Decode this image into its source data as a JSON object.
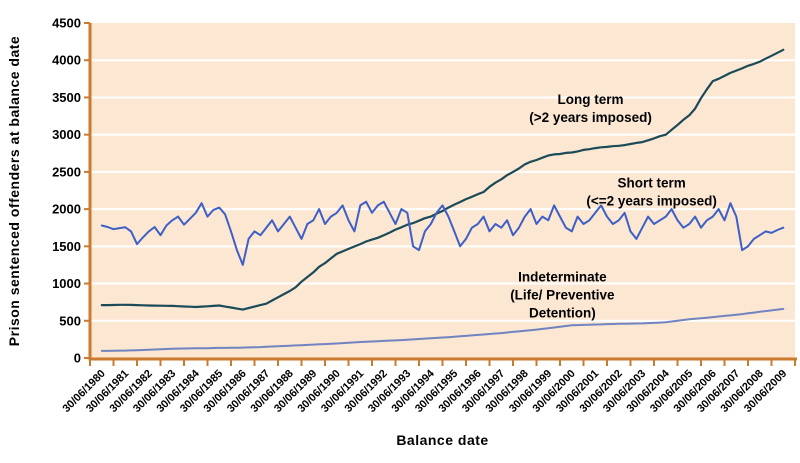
{
  "chart_data": {
    "type": "line",
    "title": "",
    "xlabel": "Balance date",
    "ylabel": "Prison sentenced offenders at balance date",
    "ylim": [
      0,
      4500
    ],
    "ytick_step": 500,
    "grid": "horizontal-white",
    "legend_position": "inline-annotations",
    "plot_background": "#FCE7D3",
    "grid_color": "#FFFFFF",
    "axis_color": "#CC7A2E",
    "text_color": "#000000",
    "x_categories": [
      "30/06/1980",
      "30/06/1981",
      "30/06/1982",
      "30/06/1983",
      "30/06/1984",
      "30/06/1985",
      "30/06/1986",
      "30/06/1987",
      "30/06/1988",
      "30/06/1989",
      "30/06/1990",
      "30/06/1991",
      "30/06/1992",
      "30/06/1993",
      "30/06/1994",
      "30/06/1995",
      "30/06/1996",
      "30/06/1997",
      "30/06/1998",
      "30/06/1999",
      "30/06/2000",
      "30/06/2001",
      "30/06/2002",
      "30/06/2003",
      "30/06/2004",
      "30/06/2005",
      "30/06/2006",
      "30/06/2007",
      "30/06/2008",
      "30/06/2009"
    ],
    "x_start": 1980.5,
    "x_step": 0.25,
    "series": [
      {
        "name": "Long term (>2 years imposed)",
        "color": "#1B4A58",
        "width": 2.2,
        "values": [
          710,
          711,
          712,
          714,
          715,
          713,
          710,
          708,
          705,
          704,
          702,
          701,
          700,
          696,
          692,
          689,
          685,
          690,
          695,
          700,
          705,
          691,
          678,
          664,
          650,
          670,
          690,
          710,
          730,
          772,
          815,
          858,
          900,
          950,
          1025,
          1088,
          1150,
          1225,
          1275,
          1338,
          1400,
          1432,
          1465,
          1498,
          1530,
          1565,
          1590,
          1615,
          1650,
          1685,
          1725,
          1755,
          1790,
          1812,
          1845,
          1878,
          1900,
          1940,
          1975,
          2020,
          2060,
          2095,
          2135,
          2165,
          2200,
          2230,
          2300,
          2355,
          2400,
          2455,
          2500,
          2545,
          2600,
          2635,
          2660,
          2690,
          2720,
          2735,
          2740,
          2755,
          2760,
          2775,
          2795,
          2805,
          2820,
          2830,
          2835,
          2845,
          2850,
          2860,
          2875,
          2890,
          2900,
          2925,
          2950,
          2980,
          3000,
          3065,
          3130,
          3200,
          3260,
          3350,
          3490,
          3610,
          3720,
          3750,
          3790,
          3830,
          3860,
          3890,
          3925,
          3950,
          3980,
          4020,
          4060,
          4100,
          4140
        ]
      },
      {
        "name": "Short term (<=2 years imposed)",
        "color": "#3D5FC6",
        "width": 2,
        "values": [
          1780,
          1760,
          1730,
          1745,
          1755,
          1700,
          1530,
          1620,
          1700,
          1760,
          1650,
          1780,
          1850,
          1900,
          1790,
          1870,
          1950,
          2080,
          1900,
          1990,
          2020,
          1930,
          1700,
          1450,
          1250,
          1600,
          1700,
          1650,
          1750,
          1850,
          1700,
          1800,
          1900,
          1750,
          1600,
          1800,
          1850,
          2000,
          1800,
          1900,
          1950,
          2050,
          1850,
          1700,
          2050,
          2100,
          1950,
          2050,
          2100,
          1950,
          1800,
          2000,
          1950,
          1500,
          1450,
          1700,
          1800,
          1950,
          2050,
          1900,
          1700,
          1500,
          1600,
          1750,
          1800,
          1900,
          1700,
          1800,
          1750,
          1850,
          1650,
          1750,
          1900,
          2000,
          1800,
          1900,
          1850,
          2050,
          1900,
          1750,
          1700,
          1900,
          1800,
          1850,
          1950,
          2050,
          1900,
          1800,
          1850,
          1950,
          1700,
          1600,
          1750,
          1900,
          1800,
          1850,
          1900,
          2000,
          1850,
          1750,
          1800,
          1900,
          1750,
          1850,
          1900,
          2000,
          1850,
          2080,
          1900,
          1450,
          1500,
          1600,
          1650,
          1700,
          1680,
          1720,
          1750
        ]
      },
      {
        "name": "Indeterminate (Life/ Preventive Detention)",
        "color": "#7183C1",
        "width": 2,
        "values": [
          95,
          96,
          97,
          99,
          100,
          102,
          105,
          107,
          110,
          114,
          117,
          121,
          125,
          126,
          127,
          129,
          130,
          131,
          132,
          134,
          135,
          136,
          137,
          139,
          140,
          142,
          145,
          147,
          150,
          154,
          157,
          161,
          165,
          169,
          172,
          176,
          180,
          184,
          187,
          191,
          195,
          200,
          205,
          210,
          215,
          219,
          222,
          226,
          230,
          234,
          237,
          241,
          245,
          250,
          255,
          260,
          265,
          270,
          275,
          280,
          285,
          291,
          297,
          304,
          310,
          316,
          322,
          329,
          335,
          342,
          350,
          357,
          365,
          374,
          382,
          391,
          400,
          410,
          420,
          430,
          440,
          442,
          445,
          447,
          450,
          452,
          455,
          457,
          460,
          461,
          462,
          464,
          465,
          469,
          472,
          476,
          480,
          490,
          500,
          510,
          520,
          527,
          535,
          542,
          550,
          557,
          565,
          572,
          580,
          590,
          600,
          610,
          620,
          630,
          640,
          650,
          660
        ]
      }
    ],
    "annotations": [
      {
        "lines": [
          "Long term",
          "(>2 years imposed)"
        ],
        "x": 2001.3,
        "y": 3345
      },
      {
        "lines": [
          "Short term",
          "(<=2 years imposed)"
        ],
        "x": 2003.9,
        "y": 2220
      },
      {
        "lines": [
          "Indeterminate",
          "(Life/ Preventive",
          "Detention)"
        ],
        "x": 2000.1,
        "y": 840
      }
    ]
  }
}
